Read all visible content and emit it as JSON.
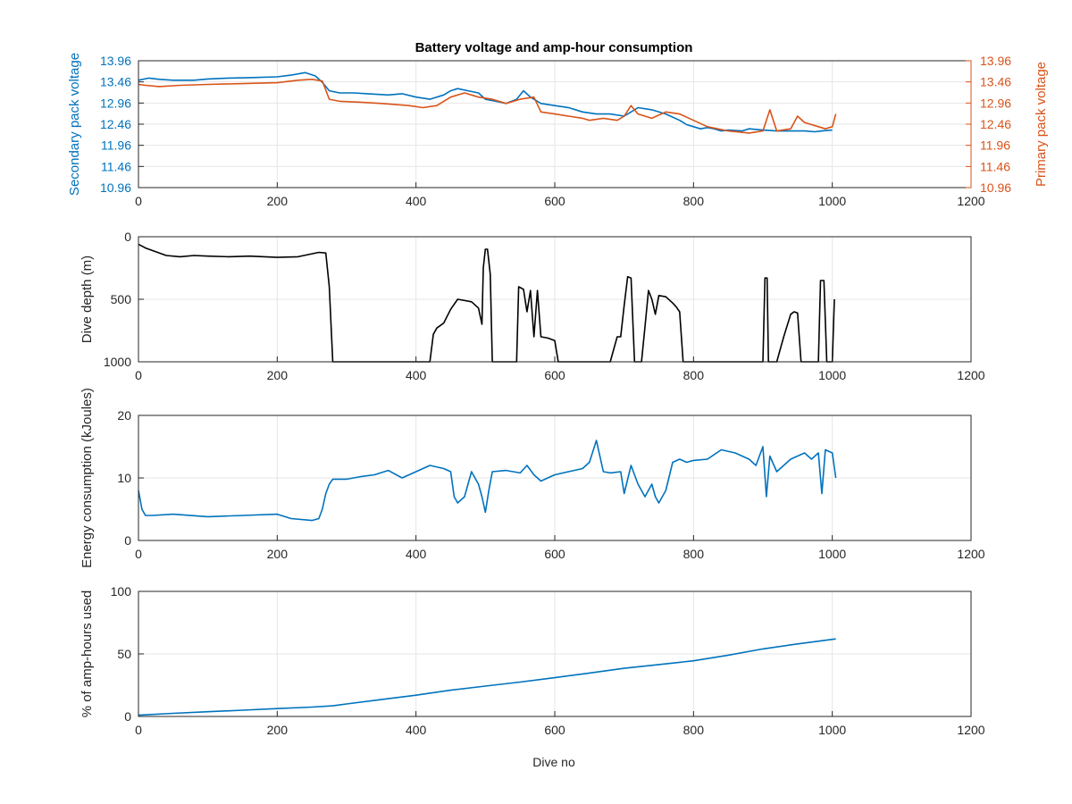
{
  "figure": {
    "title": "Battery voltage and amp-hour consumption",
    "xlabel": "Dive no"
  },
  "chart_data": [
    {
      "type": "line",
      "title": "Battery voltage and amp-hour consumption",
      "xlabel": "",
      "ylabel_left": "Secondary pack voltage",
      "ylabel_right": "Primary pack voltage",
      "xlim": [
        0,
        1200
      ],
      "ylim": [
        10.96,
        13.96
      ],
      "xticks": [
        "0",
        "200",
        "400",
        "600",
        "800",
        "1000",
        "1200"
      ],
      "yticks": [
        "10.96",
        "11.46",
        "11.96",
        "12.46",
        "12.96",
        "13.46",
        "13.96"
      ],
      "grid": true,
      "colors": {
        "secondary": "#0072BD",
        "primary": "#D95319"
      },
      "series": [
        {
          "name": "Secondary pack voltage",
          "x": [
            0,
            15,
            30,
            50,
            80,
            100,
            130,
            160,
            200,
            220,
            240,
            255,
            265,
            275,
            290,
            310,
            330,
            360,
            380,
            400,
            420,
            440,
            450,
            460,
            475,
            490,
            500,
            515,
            530,
            545,
            555,
            565,
            580,
            600,
            620,
            640,
            660,
            680,
            700,
            710,
            720,
            740,
            760,
            780,
            790,
            800,
            810,
            820,
            830,
            840,
            850,
            870,
            880,
            900,
            920,
            940,
            960,
            975,
            985,
            1000
          ],
          "values": [
            13.5,
            13.55,
            13.52,
            13.5,
            13.5,
            13.53,
            13.55,
            13.56,
            13.58,
            13.62,
            13.68,
            13.6,
            13.45,
            13.25,
            13.2,
            13.2,
            13.18,
            13.15,
            13.18,
            13.1,
            13.05,
            13.15,
            13.25,
            13.3,
            13.25,
            13.2,
            13.05,
            13.0,
            12.95,
            13.05,
            13.25,
            13.1,
            12.95,
            12.9,
            12.85,
            12.75,
            12.7,
            12.7,
            12.65,
            12.75,
            12.85,
            12.8,
            12.7,
            12.55,
            12.45,
            12.4,
            12.35,
            12.38,
            12.35,
            12.3,
            12.32,
            12.3,
            12.35,
            12.32,
            12.3,
            12.3,
            12.3,
            12.28,
            12.3,
            12.32
          ]
        },
        {
          "name": "Primary pack voltage",
          "x": [
            0,
            10,
            30,
            60,
            100,
            150,
            200,
            230,
            250,
            265,
            275,
            290,
            320,
            350,
            390,
            410,
            430,
            450,
            470,
            490,
            510,
            530,
            550,
            570,
            580,
            600,
            620,
            640,
            650,
            670,
            690,
            700,
            710,
            720,
            740,
            760,
            780,
            800,
            820,
            850,
            880,
            900,
            910,
            920,
            940,
            950,
            960,
            980,
            990,
            1000,
            1005
          ],
          "values": [
            13.4,
            13.38,
            13.35,
            13.38,
            13.4,
            13.42,
            13.44,
            13.5,
            13.52,
            13.48,
            13.05,
            13.0,
            12.98,
            12.95,
            12.9,
            12.85,
            12.9,
            13.1,
            13.2,
            13.1,
            13.05,
            12.95,
            13.05,
            13.1,
            12.75,
            12.7,
            12.65,
            12.6,
            12.55,
            12.6,
            12.55,
            12.65,
            12.9,
            12.7,
            12.6,
            12.75,
            12.7,
            12.55,
            12.4,
            12.3,
            12.25,
            12.3,
            12.8,
            12.3,
            12.35,
            12.65,
            12.5,
            12.4,
            12.35,
            12.4,
            12.7
          ]
        }
      ]
    },
    {
      "type": "line",
      "title": "",
      "xlabel": "",
      "ylabel": "Dive depth (m)",
      "xlim": [
        0,
        1200
      ],
      "ylim": [
        1000,
        0
      ],
      "y_reversed": true,
      "xticks": [
        "0",
        "200",
        "400",
        "600",
        "800",
        "1000",
        "1200"
      ],
      "yticks": [
        "0",
        "500",
        "1000"
      ],
      "grid": true,
      "colors": {
        "line": "#000000"
      },
      "series": [
        {
          "x": [
            0,
            10,
            20,
            40,
            60,
            80,
            100,
            130,
            160,
            200,
            230,
            260,
            270,
            275,
            280,
            300,
            350,
            400,
            420,
            425,
            430,
            440,
            450,
            460,
            470,
            480,
            490,
            495,
            497,
            500,
            503,
            507,
            510,
            515,
            545,
            548,
            555,
            560,
            565,
            570,
            575,
            580,
            590,
            600,
            605,
            610,
            680,
            685,
            690,
            695,
            700,
            705,
            710,
            715,
            725,
            730,
            735,
            740,
            745,
            750,
            760,
            770,
            775,
            780,
            785,
            790,
            900,
            903,
            906,
            908,
            910,
            915,
            920,
            930,
            940,
            945,
            950,
            955,
            980,
            983,
            988,
            992,
            995,
            1000,
            1003
          ],
          "values": [
            60,
            90,
            110,
            150,
            160,
            150,
            155,
            160,
            155,
            165,
            160,
            125,
            130,
            400,
            1000,
            1000,
            1000,
            1000,
            1000,
            780,
            730,
            690,
            580,
            500,
            510,
            520,
            570,
            700,
            250,
            100,
            100,
            300,
            1000,
            1000,
            1000,
            400,
            420,
            600,
            430,
            800,
            430,
            800,
            810,
            830,
            1000,
            1000,
            1000,
            900,
            800,
            800,
            550,
            320,
            330,
            1000,
            1000,
            720,
            430,
            500,
            620,
            470,
            480,
            530,
            560,
            600,
            1000,
            1000,
            1000,
            330,
            330,
            1000,
            1000,
            1000,
            1000,
            800,
            620,
            600,
            610,
            1000,
            1000,
            350,
            350,
            1000,
            1000,
            1000,
            500
          ]
        }
      ]
    },
    {
      "type": "line",
      "title": "",
      "xlabel": "",
      "ylabel": "Energy consumption (kJoules)",
      "xlim": [
        0,
        1200
      ],
      "ylim": [
        0,
        20
      ],
      "xticks": [
        "0",
        "200",
        "400",
        "600",
        "800",
        "1000",
        "1200"
      ],
      "yticks": [
        "0",
        "10",
        "20"
      ],
      "grid": true,
      "colors": {
        "line": "#0072BD"
      },
      "series": [
        {
          "x": [
            0,
            5,
            10,
            20,
            50,
            100,
            150,
            200,
            220,
            250,
            260,
            265,
            270,
            275,
            280,
            300,
            320,
            340,
            360,
            380,
            400,
            420,
            440,
            450,
            455,
            460,
            470,
            480,
            490,
            495,
            500,
            505,
            510,
            530,
            550,
            560,
            570,
            580,
            590,
            600,
            620,
            640,
            650,
            660,
            670,
            680,
            695,
            700,
            710,
            720,
            730,
            740,
            745,
            750,
            760,
            770,
            780,
            790,
            800,
            820,
            840,
            860,
            880,
            890,
            900,
            905,
            910,
            920,
            940,
            960,
            970,
            980,
            985,
            990,
            1000,
            1005
          ],
          "values": [
            8,
            5,
            4,
            4,
            4.2,
            3.8,
            4,
            4.2,
            3.5,
            3.2,
            3.5,
            5,
            7.5,
            9,
            9.8,
            9.8,
            10.2,
            10.5,
            11.2,
            10,
            11,
            12,
            11.5,
            11,
            7,
            6,
            7,
            11,
            9,
            7,
            4.5,
            8,
            11,
            11.2,
            10.8,
            12,
            10.5,
            9.5,
            10,
            10.5,
            11,
            11.5,
            12.5,
            16,
            11,
            10.8,
            11,
            7.5,
            12,
            9,
            7,
            9,
            7,
            6,
            8,
            12.5,
            13,
            12.5,
            12.8,
            13,
            14.5,
            14,
            13,
            12,
            15,
            7,
            13.5,
            11,
            13,
            14,
            13,
            14,
            7.5,
            14.5,
            14,
            10
          ]
        }
      ]
    },
    {
      "type": "line",
      "title": "",
      "xlabel": "Dive no",
      "ylabel": "% of amp-hours used",
      "xlim": [
        0,
        1200
      ],
      "ylim": [
        0,
        100
      ],
      "xticks": [
        "0",
        "200",
        "400",
        "600",
        "800",
        "1000",
        "1200"
      ],
      "yticks": [
        "0",
        "50",
        "100"
      ],
      "grid": true,
      "colors": {
        "line": "#0072BD"
      },
      "series": [
        {
          "x": [
            0,
            50,
            100,
            150,
            200,
            250,
            280,
            300,
            350,
            400,
            450,
            500,
            550,
            600,
            650,
            700,
            750,
            800,
            850,
            900,
            950,
            1005
          ],
          "values": [
            1,
            2.5,
            3.8,
            5,
            6.3,
            7.5,
            8.5,
            10,
            13.5,
            17,
            21,
            24.3,
            27.5,
            31,
            34.7,
            38.5,
            41.5,
            44.5,
            49,
            54,
            58,
            62
          ]
        }
      ]
    }
  ]
}
